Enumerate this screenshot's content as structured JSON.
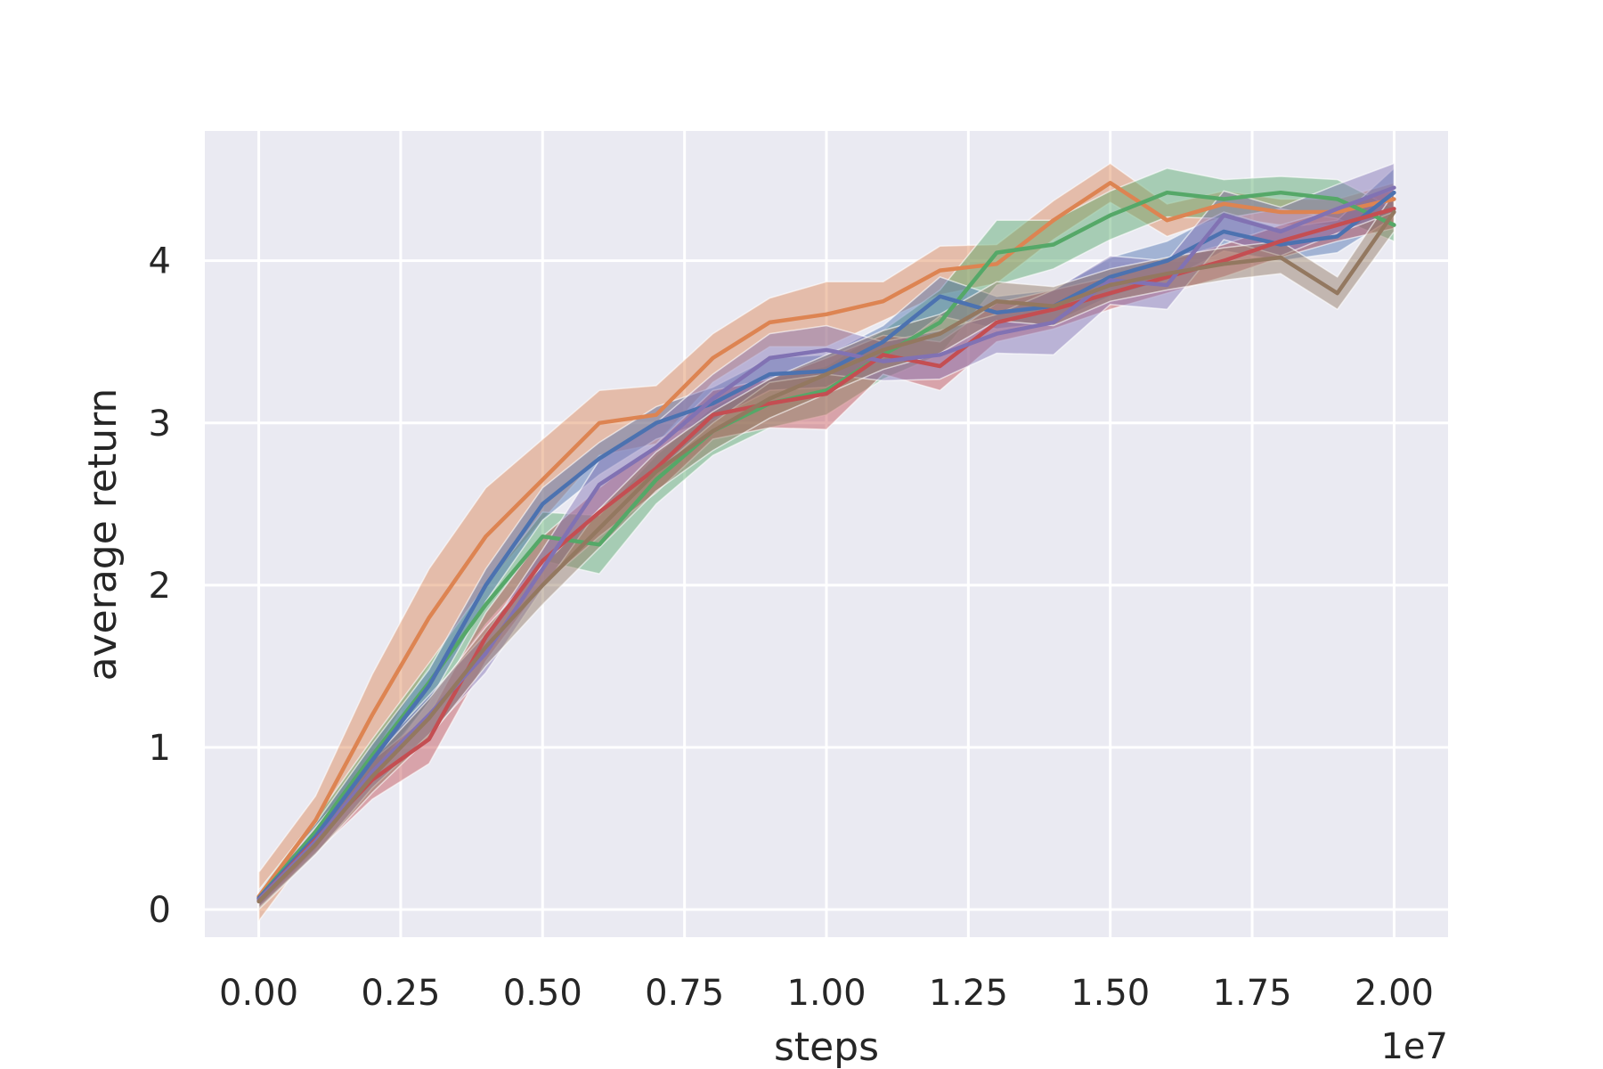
{
  "chart_data": {
    "type": "line",
    "title": "",
    "xlabel": "steps",
    "ylabel": "average return",
    "x_offset_label": "1e7",
    "xlim": [
      -0.095,
      2.095
    ],
    "ylim": [
      -0.17,
      4.8
    ],
    "x_ticks": [
      0.0,
      0.25,
      0.5,
      0.75,
      1.0,
      1.25,
      1.5,
      1.75,
      2.0
    ],
    "x_tick_labels": [
      "0.00",
      "0.25",
      "0.50",
      "0.75",
      "1.00",
      "1.25",
      "1.50",
      "1.75",
      "2.00"
    ],
    "y_ticks": [
      0,
      1,
      2,
      3,
      4
    ],
    "y_tick_labels": [
      "0",
      "1",
      "2",
      "3",
      "4"
    ],
    "grid": true,
    "x": [
      0.0,
      0.1,
      0.2,
      0.3,
      0.4,
      0.5,
      0.6,
      0.7,
      0.8,
      0.9,
      1.0,
      1.1,
      1.2,
      1.3,
      1.4,
      1.5,
      1.6,
      1.7,
      1.8,
      1.9,
      2.0
    ],
    "series": [
      {
        "color": "#dd8452",
        "values": [
          0.08,
          0.55,
          1.2,
          1.8,
          2.3,
          2.65,
          3.0,
          3.05,
          3.4,
          3.62,
          3.67,
          3.75,
          3.94,
          3.98,
          4.25,
          4.48,
          4.25,
          4.35,
          4.3,
          4.3,
          4.38
        ],
        "band": [
          0.15,
          0.15,
          0.25,
          0.3,
          0.3,
          0.25,
          0.2,
          0.18,
          0.15,
          0.15,
          0.2,
          0.12,
          0.15,
          0.12,
          0.12,
          0.12,
          0.1,
          0.08,
          0.08,
          0.08,
          0.1
        ]
      },
      {
        "color": "#55a868",
        "values": [
          0.07,
          0.48,
          0.95,
          1.4,
          1.88,
          2.3,
          2.25,
          2.65,
          2.95,
          3.12,
          3.2,
          3.42,
          3.62,
          4.05,
          4.1,
          4.28,
          4.42,
          4.38,
          4.42,
          4.38,
          4.22
        ],
        "band": [
          0.05,
          0.08,
          0.1,
          0.12,
          0.12,
          0.15,
          0.18,
          0.15,
          0.15,
          0.15,
          0.15,
          0.15,
          0.2,
          0.2,
          0.15,
          0.15,
          0.15,
          0.12,
          0.1,
          0.12,
          0.1
        ]
      },
      {
        "color": "#4c72b0",
        "values": [
          0.07,
          0.45,
          0.92,
          1.38,
          2.0,
          2.5,
          2.78,
          3.0,
          3.12,
          3.3,
          3.32,
          3.5,
          3.78,
          3.68,
          3.72,
          3.9,
          4.0,
          4.18,
          4.1,
          4.15,
          4.42
        ],
        "band": [
          0.05,
          0.08,
          0.1,
          0.1,
          0.1,
          0.1,
          0.1,
          0.1,
          0.1,
          0.1,
          0.1,
          0.1,
          0.12,
          0.1,
          0.1,
          0.12,
          0.12,
          0.12,
          0.1,
          0.1,
          0.15
        ]
      },
      {
        "color": "#c44e52",
        "values": [
          0.06,
          0.43,
          0.8,
          1.05,
          1.68,
          2.15,
          2.45,
          2.72,
          3.05,
          3.12,
          3.18,
          3.42,
          3.35,
          3.62,
          3.7,
          3.8,
          3.9,
          4.0,
          4.12,
          4.22,
          4.32
        ],
        "band": [
          0.05,
          0.08,
          0.12,
          0.15,
          0.15,
          0.15,
          0.15,
          0.15,
          0.15,
          0.15,
          0.22,
          0.12,
          0.15,
          0.12,
          0.12,
          0.1,
          0.1,
          0.1,
          0.1,
          0.1,
          0.12
        ]
      },
      {
        "color": "#8172b3",
        "values": [
          0.06,
          0.42,
          0.85,
          1.2,
          1.58,
          2.1,
          2.62,
          2.85,
          3.15,
          3.4,
          3.45,
          3.38,
          3.42,
          3.55,
          3.62,
          3.88,
          3.85,
          4.28,
          4.18,
          4.32,
          4.45
        ],
        "band": [
          0.05,
          0.08,
          0.1,
          0.12,
          0.12,
          0.12,
          0.15,
          0.15,
          0.15,
          0.15,
          0.15,
          0.12,
          0.15,
          0.12,
          0.2,
          0.15,
          0.15,
          0.15,
          0.15,
          0.15,
          0.15
        ]
      },
      {
        "color": "#937860",
        "values": [
          0.05,
          0.4,
          0.82,
          1.18,
          1.62,
          2.0,
          2.35,
          2.7,
          2.95,
          3.15,
          3.3,
          3.45,
          3.55,
          3.75,
          3.72,
          3.85,
          3.92,
          3.98,
          4.02,
          3.8,
          4.3
        ],
        "band": [
          0.05,
          0.06,
          0.1,
          0.12,
          0.12,
          0.12,
          0.12,
          0.12,
          0.12,
          0.12,
          0.12,
          0.12,
          0.12,
          0.12,
          0.12,
          0.1,
          0.1,
          0.1,
          0.1,
          0.1,
          0.12
        ]
      }
    ]
  }
}
